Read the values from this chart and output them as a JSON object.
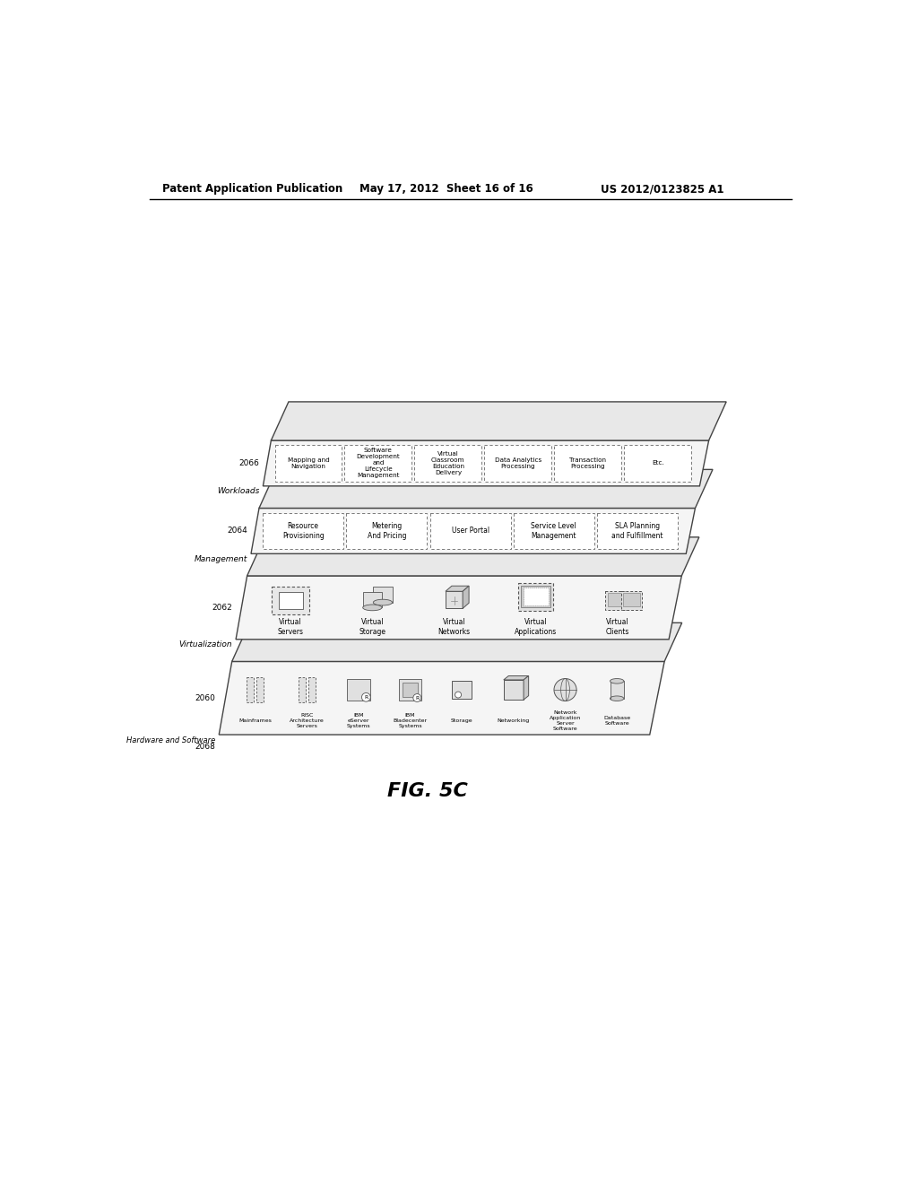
{
  "header_left": "Patent Application Publication",
  "header_mid": "May 17, 2012  Sheet 16 of 16",
  "header_right": "US 2012/0123825 A1",
  "fig_label": "FIG. 5C",
  "bg_color": "#ffffff",
  "workload_boxes": [
    "Mapping and\nNavigation",
    "Software\nDevelopment\nand\nLifecycle\nManagement",
    "Virtual\nClassroom\nEducation\nDelivery",
    "Data Analytics\nProcessing",
    "Transaction\nProcessing",
    "Etc."
  ],
  "management_boxes": [
    "Resource\nProvisioning",
    "Metering\nAnd Pricing",
    "User Portal",
    "Service Level\nManagement",
    "SLA Planning\nand Fulfillment"
  ],
  "virt_labels": [
    "Virtual\nServers",
    "Virtual\nStorage",
    "Virtual\nNetworks",
    "Virtual\nApplications",
    "Virtual\nClients"
  ],
  "hw_labels": [
    "Mainframes",
    "RISC\nArchitecture\nServers",
    "IBM\neServer\nSystems",
    "IBM\nBladecenter\nSystems",
    "Storage",
    "Networking",
    "Network\nApplication\nServer\nSoftware",
    "Database\nSoftware"
  ],
  "layer_names": [
    "Hardware and Software",
    "Virtualization",
    "Management",
    "Workloads"
  ],
  "layer_refs": [
    "2060",
    "2062",
    "2064",
    "2066"
  ],
  "ref_2068": "2068"
}
